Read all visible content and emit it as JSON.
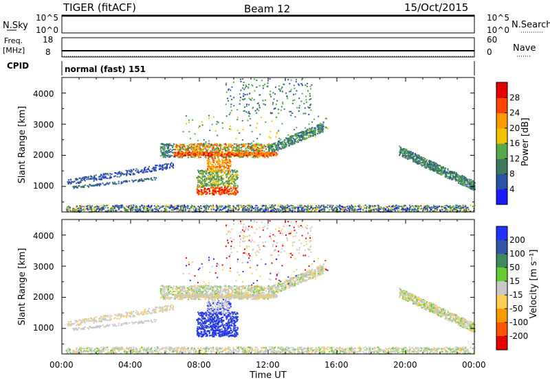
{
  "header": {
    "station": "TIGER (fitACF)",
    "beam": "Beam 12",
    "date": "15/Oct/2015"
  },
  "nsky_panel": {
    "left_label": "N.Sky",
    "right_label": "N.Search",
    "ticks": [
      "10^5",
      "10^0"
    ],
    "right_ticks": [
      "10^5",
      "10^0"
    ]
  },
  "freq_panel": {
    "left_label_1": "Freq.",
    "left_label_2": "[MHz]",
    "right_label": "Nave",
    "left_ticks": [
      "18",
      "8"
    ],
    "right_ticks": [
      "60",
      "0"
    ]
  },
  "cpid_panel": {
    "label": "CPID",
    "text": "normal (fast) 151"
  },
  "power_panel": {
    "ylabel": "Slant Range [km]",
    "yticks": [
      "1000",
      "2000",
      "3000",
      "4000"
    ],
    "colorbar_label": "Power [dB]",
    "colorbar_ticks": [
      "4",
      "8",
      "12",
      "16",
      "20",
      "24",
      "28"
    ],
    "colorbar_colors": [
      "#1a1aff",
      "#2a52a8",
      "#3d7a5c",
      "#55aa4a",
      "#f2c200",
      "#ff9900",
      "#ff4400",
      "#e60000"
    ]
  },
  "velocity_panel": {
    "ylabel": "Slant Range [km]",
    "yticks": [
      "1000",
      "2000",
      "3000",
      "4000"
    ],
    "colorbar_label": "Velocity [m s⁻¹]",
    "colorbar_ticks": [
      "200",
      "100",
      "50",
      "15",
      "-15",
      "-50",
      "-100",
      "-200"
    ],
    "colorbar_colors": [
      "#2233ff",
      "#3355aa",
      "#3d8a5c",
      "#66cc33",
      "#c8c8c8",
      "#ffcc55",
      "#ff9900",
      "#ff5500",
      "#e60000"
    ]
  },
  "xaxis": {
    "label": "Time UT",
    "ticks": [
      "00:00",
      "04:00",
      "08:00",
      "12:00",
      "16:00",
      "20:00",
      "00:00"
    ]
  },
  "chart_data": {
    "type": "heatmap",
    "x_range_hours": [
      0,
      24
    ],
    "y_range_km": [
      180,
      4500
    ],
    "features": [
      {
        "name": "ground scatter low range",
        "t_start": 0.2,
        "t_end": 24,
        "range_km": [
          200,
          400
        ]
      },
      {
        "name": "morning arc",
        "t_start": 0.3,
        "t_end": 6.5,
        "range_km": [
          900,
          1600
        ]
      },
      {
        "name": "daytime E/F band",
        "t_start": 5.7,
        "t_end": 15.2,
        "range_km": [
          1800,
          2900
        ]
      },
      {
        "name": "midday near-range blob",
        "t_start": 7.8,
        "t_end": 10.2,
        "range_km": [
          750,
          1600
        ]
      },
      {
        "name": "high range sporadic",
        "t_start": 9.5,
        "t_end": 14.5,
        "range_km": [
          3300,
          4500
        ]
      },
      {
        "name": "evening arc",
        "t_start": 19.6,
        "t_end": 24,
        "range_km": [
          900,
          2300
        ]
      }
    ]
  }
}
